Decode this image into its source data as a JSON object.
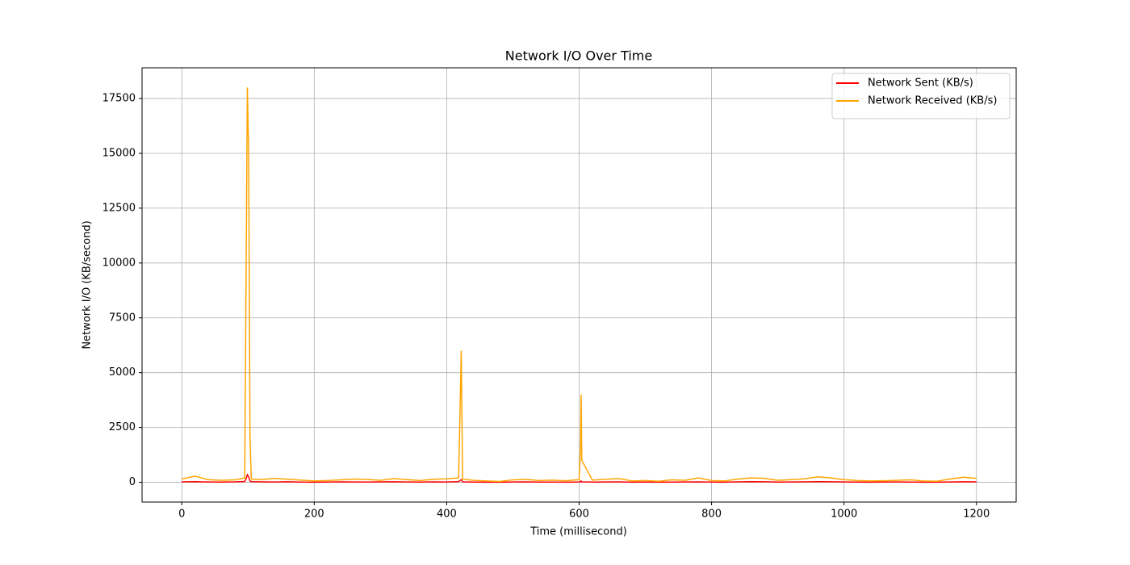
{
  "chart_data": {
    "type": "line",
    "title": "Network I/O Over Time",
    "xlabel": "Time (millisecond)",
    "ylabel": "Network I/O (KB/second)",
    "x": [
      0,
      20,
      40,
      60,
      80,
      95,
      97,
      99,
      101,
      103,
      105,
      120,
      140,
      160,
      180,
      200,
      220,
      240,
      260,
      280,
      300,
      320,
      340,
      360,
      380,
      400,
      418,
      420,
      422,
      424,
      440,
      460,
      480,
      500,
      520,
      540,
      560,
      580,
      600,
      602,
      603,
      604,
      620,
      640,
      660,
      680,
      700,
      720,
      740,
      760,
      780,
      800,
      820,
      840,
      860,
      880,
      900,
      920,
      940,
      960,
      980,
      1000,
      1020,
      1040,
      1060,
      1080,
      1100,
      1120,
      1140,
      1160,
      1180,
      1200
    ],
    "series": [
      {
        "name": "Network Sent (KB/s)",
        "color": "#ff0000",
        "values": [
          20,
          30,
          15,
          10,
          20,
          40,
          150,
          350,
          250,
          60,
          30,
          20,
          15,
          25,
          10,
          5,
          10,
          20,
          15,
          10,
          20,
          25,
          15,
          10,
          20,
          15,
          30,
          80,
          120,
          20,
          10,
          5,
          5,
          15,
          20,
          10,
          10,
          5,
          15,
          30,
          60,
          20,
          10,
          15,
          20,
          5,
          10,
          5,
          10,
          15,
          20,
          10,
          5,
          20,
          30,
          25,
          10,
          15,
          20,
          30,
          25,
          15,
          10,
          5,
          10,
          15,
          10,
          5,
          5,
          15,
          25,
          20
        ]
      },
      {
        "name": "Network Received (KB/s)",
        "color": "#ffa500",
        "values": [
          150,
          280,
          120,
          90,
          110,
          200,
          9000,
          18000,
          15000,
          2000,
          150,
          120,
          180,
          140,
          100,
          60,
          80,
          110,
          150,
          130,
          90,
          170,
          120,
          80,
          140,
          160,
          200,
          3000,
          6000,
          150,
          90,
          60,
          40,
          110,
          130,
          80,
          100,
          70,
          120,
          1500,
          4000,
          1000,
          100,
          140,
          170,
          60,
          80,
          50,
          110,
          90,
          200,
          80,
          60,
          150,
          200,
          180,
          90,
          120,
          160,
          250,
          200,
          120,
          80,
          60,
          70,
          90,
          110,
          60,
          50,
          150,
          230,
          180
        ]
      }
    ],
    "xlim": [
      -60,
      1260
    ],
    "xticks": [
      0,
      200,
      400,
      600,
      800,
      1000,
      1200
    ],
    "ylim": [
      -900,
      18900
    ],
    "yticks": [
      0,
      2500,
      5000,
      7500,
      10000,
      12500,
      15000,
      17500
    ],
    "grid": true,
    "legend": "upper right"
  }
}
